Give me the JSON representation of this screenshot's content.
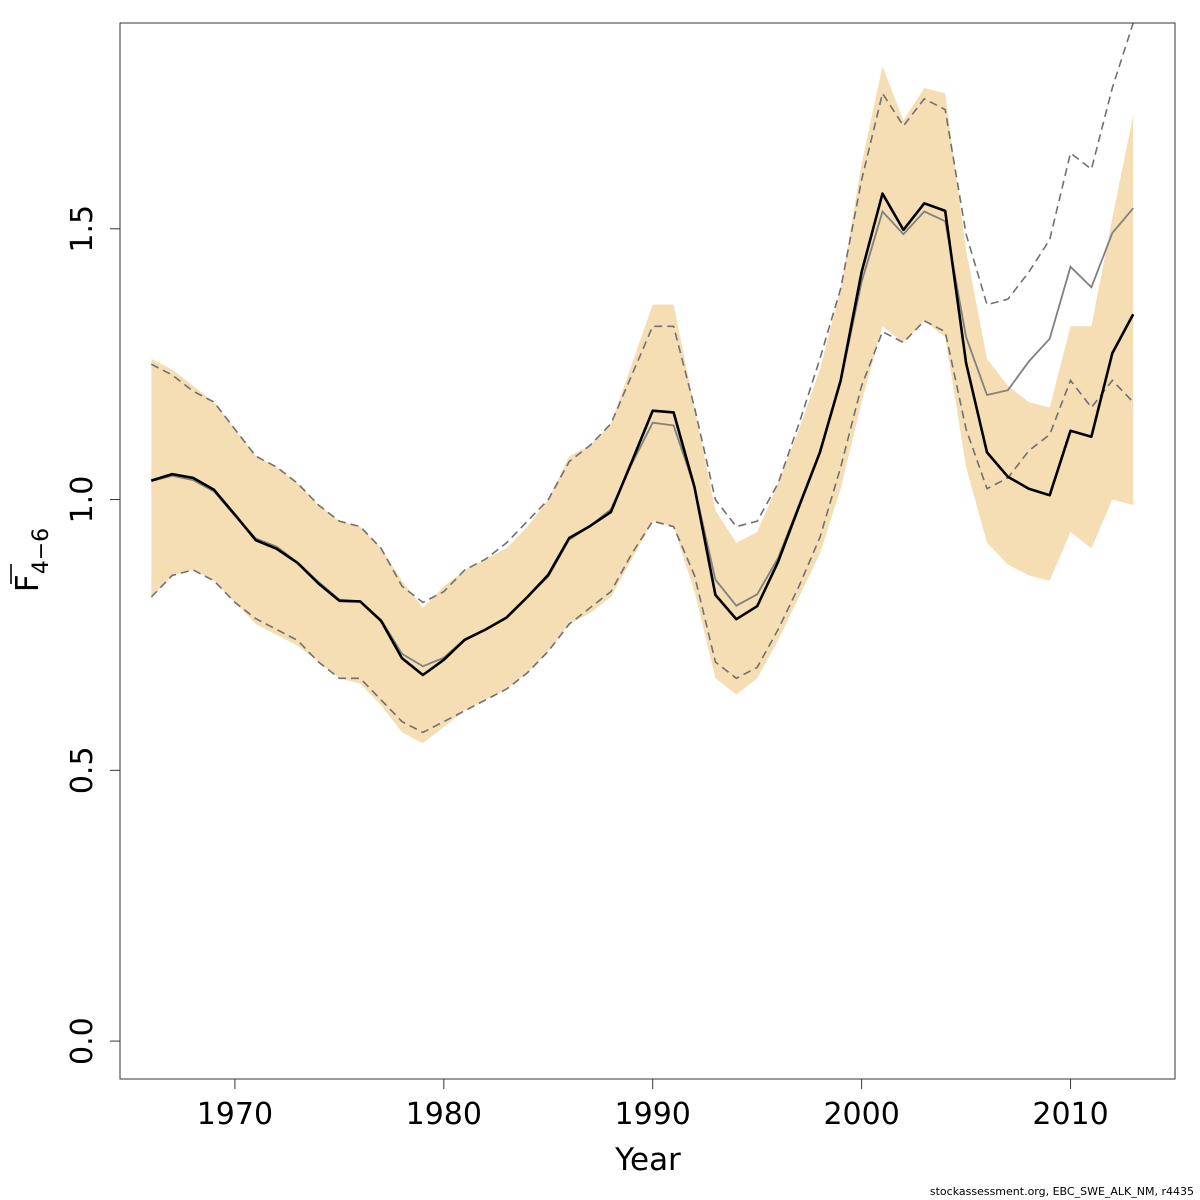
{
  "chart_data": {
    "type": "line",
    "xlabel": "Year",
    "ylabel": "F",
    "ylabel_subscript": "4−6",
    "xlim": [
      1964.5,
      2015
    ],
    "ylim": [
      -0.07,
      1.88
    ],
    "x_ticks": [
      1970,
      1980,
      1990,
      2000,
      2010
    ],
    "y_ticks": [
      0.0,
      0.5,
      1.0,
      1.5
    ],
    "y_tick_labels": [
      "0.0",
      "0.5",
      "1.0",
      "1.5"
    ],
    "grid": false,
    "colors": {
      "band": "#f5deb3",
      "estimate": "#000000",
      "retro_estimate": "#808080",
      "retro_bounds": "#707070"
    },
    "x": [
      1966,
      1967,
      1968,
      1969,
      1970,
      1971,
      1972,
      1973,
      1974,
      1975,
      1976,
      1977,
      1978,
      1979,
      1980,
      1981,
      1982,
      1983,
      1984,
      1985,
      1986,
      1987,
      1988,
      1989,
      1990,
      1991,
      1992,
      1993,
      1994,
      1995,
      1996,
      1997,
      1998,
      1999,
      2000,
      2001,
      2002,
      2003,
      2004,
      2005,
      2006,
      2007,
      2008,
      2009,
      2010,
      2011,
      2012,
      2013
    ],
    "series": [
      {
        "role": "confidence-band-lower",
        "values": [
          0.82,
          0.86,
          0.87,
          0.85,
          0.81,
          0.77,
          0.75,
          0.73,
          0.7,
          0.67,
          0.66,
          0.62,
          0.57,
          0.55,
          0.58,
          0.61,
          0.63,
          0.65,
          0.68,
          0.72,
          0.77,
          0.79,
          0.82,
          0.89,
          0.96,
          0.95,
          0.83,
          0.67,
          0.64,
          0.67,
          0.74,
          0.82,
          0.9,
          1.02,
          1.18,
          1.32,
          1.29,
          1.33,
          1.3,
          1.06,
          0.92,
          0.88,
          0.86,
          0.85,
          0.94,
          0.91,
          1.0,
          0.99
        ]
      },
      {
        "role": "confidence-band-upper",
        "values": [
          1.26,
          1.24,
          1.21,
          1.18,
          1.13,
          1.08,
          1.06,
          1.03,
          0.99,
          0.96,
          0.95,
          0.91,
          0.85,
          0.8,
          0.84,
          0.87,
          0.89,
          0.91,
          0.95,
          1.0,
          1.08,
          1.1,
          1.14,
          1.25,
          1.36,
          1.36,
          1.17,
          0.98,
          0.92,
          0.94,
          1.03,
          1.13,
          1.24,
          1.39,
          1.62,
          1.8,
          1.7,
          1.76,
          1.75,
          1.46,
          1.26,
          1.21,
          1.18,
          1.17,
          1.32,
          1.32,
          1.52,
          1.71
        ]
      },
      {
        "role": "estimate",
        "values": [
          1.035,
          1.047,
          1.04,
          1.018,
          0.972,
          0.925,
          0.909,
          0.883,
          0.845,
          0.813,
          0.812,
          0.776,
          0.707,
          0.676,
          0.704,
          0.741,
          0.76,
          0.782,
          0.82,
          0.861,
          0.929,
          0.951,
          0.977,
          1.07,
          1.164,
          1.161,
          1.023,
          0.824,
          0.779,
          0.803,
          0.885,
          0.987,
          1.087,
          1.22,
          1.42,
          1.565,
          1.498,
          1.547,
          1.533,
          1.252,
          1.087,
          1.042,
          1.02,
          1.008,
          1.127,
          1.116,
          1.27,
          1.342
        ]
      },
      {
        "role": "retro-estimate",
        "values": [
          1.034,
          1.044,
          1.036,
          1.015,
          0.97,
          0.928,
          0.913,
          0.884,
          0.848,
          0.815,
          0.812,
          0.778,
          0.715,
          0.692,
          0.708,
          0.742,
          0.76,
          0.783,
          0.82,
          0.858,
          0.926,
          0.951,
          0.982,
          1.066,
          1.142,
          1.137,
          1.023,
          0.852,
          0.804,
          0.825,
          0.892,
          0.99,
          1.087,
          1.218,
          1.402,
          1.532,
          1.49,
          1.532,
          1.514,
          1.3,
          1.193,
          1.202,
          1.255,
          1.297,
          1.43,
          1.392,
          1.492,
          1.538
        ]
      },
      {
        "role": "retro-lower",
        "values": [
          0.82,
          0.86,
          0.87,
          0.85,
          0.81,
          0.78,
          0.76,
          0.74,
          0.7,
          0.67,
          0.67,
          0.63,
          0.59,
          0.57,
          0.59,
          0.61,
          0.63,
          0.65,
          0.68,
          0.72,
          0.77,
          0.8,
          0.83,
          0.9,
          0.96,
          0.95,
          0.86,
          0.7,
          0.67,
          0.69,
          0.76,
          0.84,
          0.93,
          1.06,
          1.21,
          1.31,
          1.29,
          1.33,
          1.31,
          1.13,
          1.02,
          1.04,
          1.09,
          1.12,
          1.22,
          1.17,
          1.22,
          1.18
        ]
      },
      {
        "role": "retro-upper",
        "values": [
          1.25,
          1.23,
          1.2,
          1.18,
          1.13,
          1.08,
          1.06,
          1.03,
          0.99,
          0.96,
          0.95,
          0.91,
          0.84,
          0.81,
          0.83,
          0.87,
          0.89,
          0.92,
          0.96,
          1.0,
          1.07,
          1.1,
          1.14,
          1.23,
          1.32,
          1.32,
          1.17,
          1.0,
          0.95,
          0.96,
          1.03,
          1.14,
          1.26,
          1.39,
          1.59,
          1.75,
          1.69,
          1.74,
          1.72,
          1.49,
          1.36,
          1.37,
          1.42,
          1.48,
          1.64,
          1.61,
          1.76,
          1.88
        ]
      }
    ]
  },
  "credit": "stockassessment.org, EBC_SWE_ALK_NM, r4435"
}
